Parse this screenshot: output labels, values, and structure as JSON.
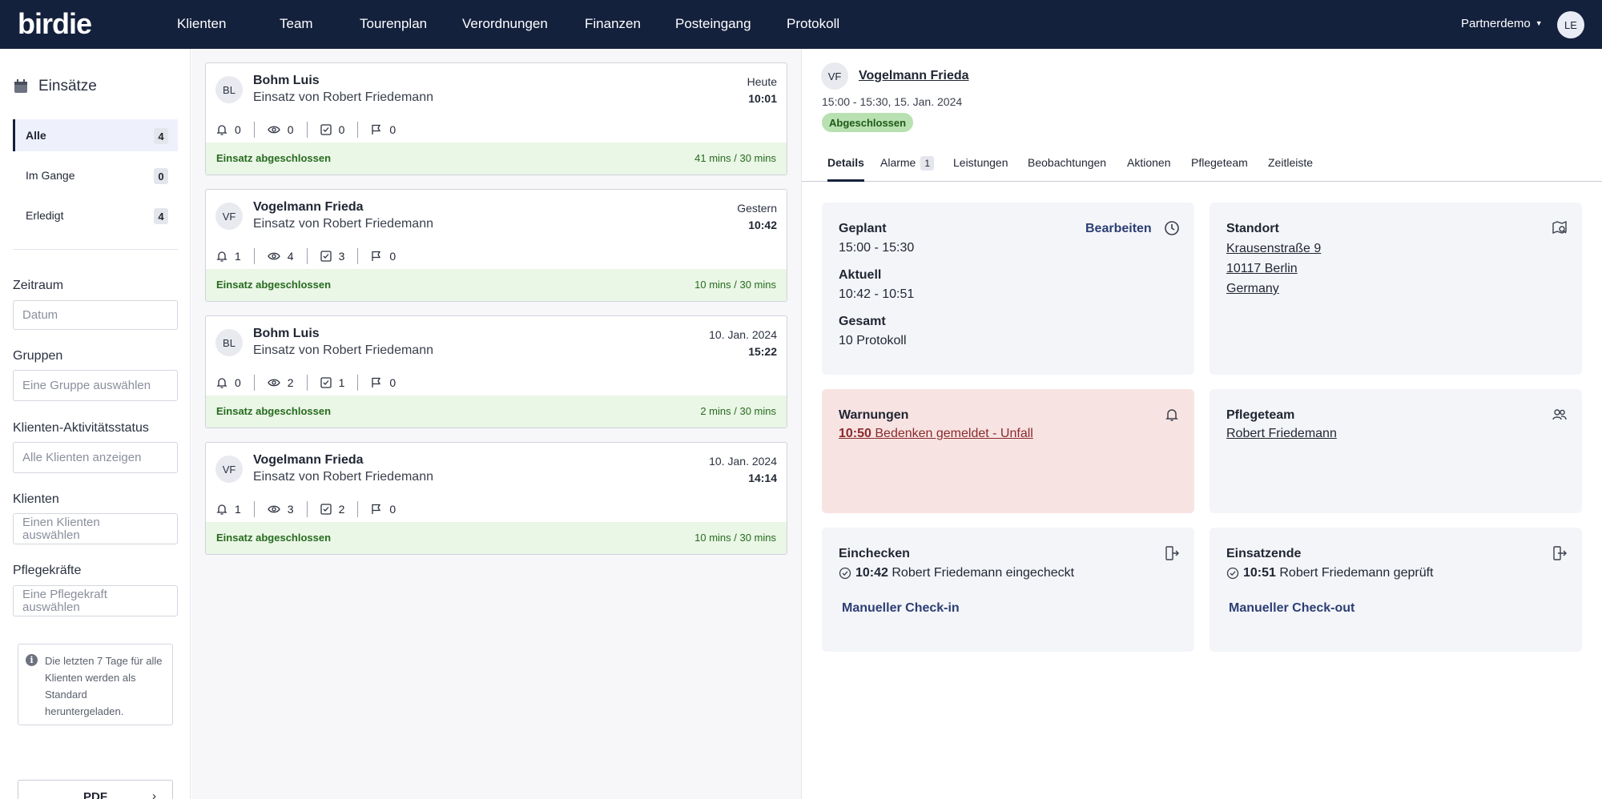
{
  "app": {
    "logo": "birdie"
  },
  "nav": {
    "items": [
      "Klienten",
      "Team",
      "Tourenplan",
      "Verordnungen",
      "Finanzen",
      "Posteingang",
      "Protokoll"
    ],
    "partner": "Partnerdemo",
    "user_initials": "LE"
  },
  "sidebar": {
    "title": "Einsätze",
    "filters": [
      {
        "label": "Alle",
        "count": "4"
      },
      {
        "label": "Im Gange",
        "count": "0"
      },
      {
        "label": "Erledigt",
        "count": "4"
      }
    ],
    "zeitraum_label": "Zeitraum",
    "zeitraum_placeholder": "Datum",
    "gruppen_label": "Gruppen",
    "gruppen_placeholder": "Eine Gruppe auswählen",
    "status_label": "Klienten-Aktivitätsstatus",
    "status_value": "Alle Klienten anzeigen",
    "klienten_label": "Klienten",
    "klienten_placeholder_1": "Einen Klienten",
    "klienten_placeholder_2": "auswählen",
    "pflege_label": "Pflegekräfte",
    "pflege_placeholder_1": "Eine Pflegekraft",
    "pflege_placeholder_2": "auswählen",
    "info_text": "Die letzten 7 Tage für alle Klienten werden als Standard heruntergeladen.",
    "pdf_label": "PDF"
  },
  "visits": [
    {
      "initials": "BL",
      "name": "Bohm Luis",
      "subtitle": "Einsatz von Robert Friedemann",
      "day": "Heute",
      "time": "10:01",
      "alerts": "0",
      "observations": "0",
      "tasks": "0",
      "flags": "0",
      "status": "Einsatz abgeschlossen",
      "duration": "41 mins / 30 mins"
    },
    {
      "initials": "VF",
      "name": "Vogelmann Frieda",
      "subtitle": "Einsatz von Robert Friedemann",
      "day": "Gestern",
      "time": "10:42",
      "alerts": "1",
      "observations": "4",
      "tasks": "3",
      "flags": "0",
      "status": "Einsatz abgeschlossen",
      "duration": "10 mins / 30 mins"
    },
    {
      "initials": "BL",
      "name": "Bohm Luis",
      "subtitle": "Einsatz von Robert Friedemann",
      "day": "10. Jan. 2024",
      "time": "15:22",
      "alerts": "0",
      "observations": "2",
      "tasks": "1",
      "flags": "0",
      "status": "Einsatz abgeschlossen",
      "duration": "2 mins / 30 mins"
    },
    {
      "initials": "VF",
      "name": "Vogelmann Frieda",
      "subtitle": "Einsatz von Robert Friedemann",
      "day": "10. Jan. 2024",
      "time": "14:14",
      "alerts": "1",
      "observations": "3",
      "tasks": "2",
      "flags": "0",
      "status": "Einsatz abgeschlossen",
      "duration": "10 mins / 30 mins"
    }
  ],
  "detail": {
    "initials": "VF",
    "name": "Vogelmann Frieda",
    "time": "15:00 - 15:30, 15. Jan. 2024",
    "badge": "Abgeschlossen",
    "tabs": [
      "Details",
      "Alarme",
      "Leistungen",
      "Beobachtungen",
      "Aktionen",
      "Pflegeteam",
      "Zeitleiste"
    ],
    "alarm_count": "1",
    "geplant_label": "Geplant",
    "geplant_value": "15:00 - 15:30",
    "aktuell_label": "Aktuell",
    "aktuell_value": "10:42 - 10:51",
    "gesamt_label": "Gesamt",
    "gesamt_value": "10 Protokoll",
    "edit_label": "Bearbeiten",
    "standort_label": "Standort",
    "address_1": "Krausenstraße 9",
    "address_2": "10117 Berlin",
    "address_3": "Germany",
    "warnungen_label": "Warnungen",
    "warn_time": "10:50",
    "warn_text": "Bedenken gemeldet - Unfall",
    "pflegeteam_label": "Pflegeteam",
    "pflegeteam_member": "Robert Friedemann",
    "checkin_label": "Einchecken",
    "checkin_time": "10:42",
    "checkin_text": "Robert Friedemann eingecheckt",
    "checkin_button": "Manueller Check-in",
    "einsatzende_label": "Einsatzende",
    "checkout_time": "10:51",
    "checkout_text": "Robert Friedemann geprüft",
    "checkout_button": "Manueller Check-out"
  },
  "colors": {
    "nav_bg": "#14213d",
    "success_bg": "#eaf6e6",
    "success_text": "#276b1f",
    "warn_bg": "#f8e3e3",
    "link_blue": "#2c3e74"
  }
}
